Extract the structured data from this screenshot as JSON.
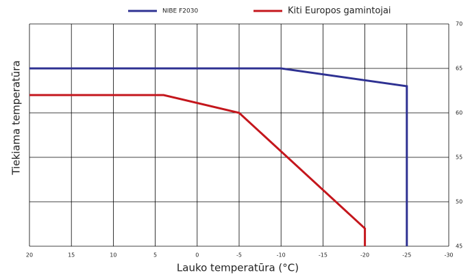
{
  "chart_data": {
    "type": "line",
    "x_label": "Lauko temperatūra (°C)",
    "y_label": "Tiekiama temperatūra",
    "series": [
      {
        "name": "NIBE F2030",
        "color": "#2e3192",
        "x": [
          20,
          -10,
          -25,
          -25
        ],
        "values": [
          65,
          65,
          63,
          45
        ]
      },
      {
        "name": "Kiti Europos gamintojai",
        "color": "#c4161c",
        "x": [
          20,
          4,
          -5,
          -20,
          -20
        ],
        "values": [
          62,
          62,
          60,
          47,
          45
        ]
      }
    ],
    "xlim": [
      20,
      -30
    ],
    "xticks": [
      20,
      15,
      10,
      5,
      0,
      -5,
      -10,
      -15,
      -20,
      -25,
      -30
    ],
    "ylim": [
      45,
      70
    ],
    "yticks": [
      45,
      50,
      55,
      60,
      65,
      70
    ],
    "grid": true,
    "legend": "top"
  }
}
